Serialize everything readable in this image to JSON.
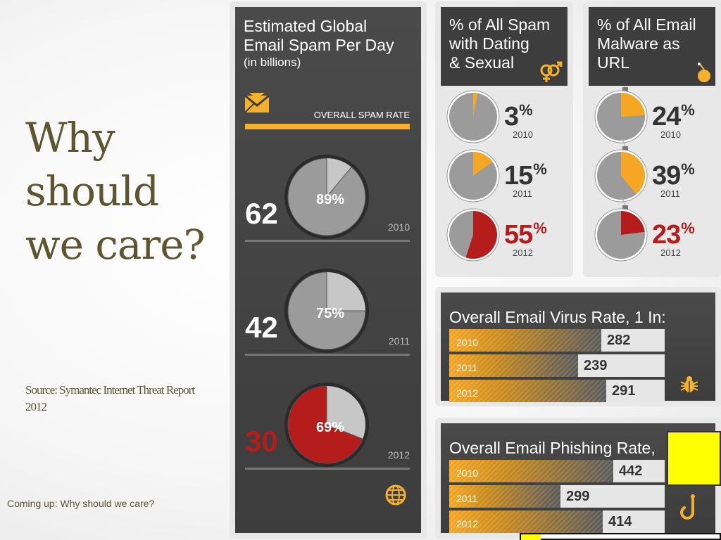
{
  "slide": {
    "title_lines": [
      "Why",
      "should",
      "we care?"
    ],
    "source": "Source: Symantec Internet Threat Report 2012",
    "footer": "Coming up: Why should we care?"
  },
  "colors": {
    "orange": "#f5a623",
    "red": "#b51c1c",
    "gray_pie": "#9b9b9b",
    "gray_pie_light": "#c7c7c7",
    "panel_dark": "#424242"
  },
  "spam_panel": {
    "title_line1": "Estimated Global",
    "title_line2": "Email Spam Per Day",
    "subtitle": "(in billions)",
    "rate_label": "OVERALL SPAM RATE",
    "icons": [
      "envelope-icon",
      "globe-icon"
    ]
  },
  "dating_panel": {
    "title_lines": [
      "% of All Spam",
      "with Dating",
      "& Sexual"
    ],
    "icon": "gender-symbols-icon"
  },
  "malware_panel": {
    "title_lines": [
      "% of All Email",
      "Malware as",
      "URL"
    ],
    "icon": "bomb-icon"
  },
  "virus_panel": {
    "title": "Overall Email Virus Rate, 1 In:",
    "icon": "bug-icon"
  },
  "phishing_panel": {
    "title": "Overall Email Phishing Rate,",
    "icon": "hook-icon"
  },
  "chart_data": [
    {
      "type": "pie",
      "title": "Estimated Global Email Spam Per Day (in billions)",
      "items": [
        {
          "year": "2010",
          "spam_billions": 62,
          "rate_percent": 89,
          "rate_label": "89%",
          "billions_label": "62"
        },
        {
          "year": "2011",
          "spam_billions": 42,
          "rate_percent": 75,
          "rate_label": "75%",
          "billions_label": "42"
        },
        {
          "year": "2012",
          "spam_billions": 30,
          "rate_percent": 69,
          "rate_label": "69%",
          "billions_label": "30"
        }
      ]
    },
    {
      "type": "pie",
      "title": "% of All Spam with Dating & Sexual",
      "items": [
        {
          "year": "2010",
          "value": 3,
          "label": "3"
        },
        {
          "year": "2011",
          "value": 15,
          "label": "15"
        },
        {
          "year": "2012",
          "value": 55,
          "label": "55"
        }
      ]
    },
    {
      "type": "pie",
      "title": "% of All Email Malware as URL",
      "items": [
        {
          "year": "2010",
          "value": 24,
          "label": "24"
        },
        {
          "year": "2011",
          "value": 39,
          "label": "39"
        },
        {
          "year": "2012",
          "value": 23,
          "label": "23"
        }
      ]
    },
    {
      "type": "bar",
      "title": "Overall Email Virus Rate, 1 In:",
      "categories": [
        "2010",
        "2011",
        "2012"
      ],
      "values": [
        282,
        239,
        291
      ],
      "value_labels": [
        "282",
        "239",
        "291"
      ]
    },
    {
      "type": "bar",
      "title": "Overall Email Phishing Rate,",
      "categories": [
        "2010",
        "2011",
        "2012"
      ],
      "values": [
        442,
        299,
        414
      ],
      "value_labels": [
        "442",
        "299",
        "414"
      ]
    }
  ]
}
